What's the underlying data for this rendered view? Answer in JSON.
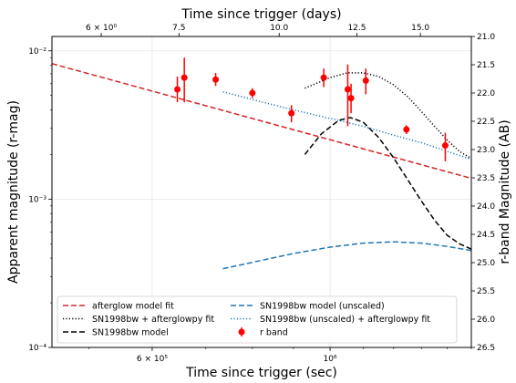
{
  "chart_data": {
    "type": "scatter",
    "xlabel": "Time since trigger (sec)",
    "ylabel": "Apparent magnitude (r-mag)",
    "top_xlabel": "Time since trigger (days)",
    "right_ylabel": "r-band Magnitude (AB)",
    "xscale": "log",
    "yscale": "log",
    "xlim": [
      450000,
      1500000
    ],
    "ylim": [
      0.0001,
      0.0125
    ],
    "grid": true,
    "legend_position": "lower-left",
    "bottom_ticks": [
      {
        "value": 600000,
        "label": "6 × 10⁵"
      },
      {
        "value": 1000000,
        "label": "10⁶"
      }
    ],
    "left_ticks": [
      {
        "value": 0.0001,
        "label": "10⁻⁴"
      },
      {
        "value": 0.001,
        "label": "10⁻³"
      },
      {
        "value": 0.01,
        "label": "10⁻²"
      }
    ],
    "top_ticks": [
      {
        "value": 6.0,
        "label": "6 × 10⁰"
      },
      {
        "value": 7.5,
        "label": "7.5"
      },
      {
        "value": 10.0,
        "label": "10.0"
      },
      {
        "value": 12.5,
        "label": "12.5"
      },
      {
        "value": 15.0,
        "label": "15.0"
      }
    ],
    "right_ticks": [
      "21.0",
      "21.5",
      "22.0",
      "22.5",
      "23.0",
      "23.5",
      "24.0",
      "24.5",
      "25.0",
      "25.5",
      "26.0",
      "26.5"
    ],
    "right_tick_values": [
      21.0,
      21.5,
      22.0,
      22.5,
      23.0,
      23.5,
      24.0,
      24.5,
      25.0,
      25.5,
      26.0,
      26.5
    ],
    "right_ylim": [
      21.0,
      26.5
    ],
    "series": [
      {
        "name": "afterglow model fit",
        "kind": "line",
        "style": "dashed",
        "color": "#d62728",
        "x": [
          450000,
          1500000
        ],
        "y": [
          0.0082,
          0.00138
        ]
      },
      {
        "name": "SN1998bw + afterglowpy fit",
        "kind": "line",
        "style": "dotted",
        "color": "#000000",
        "x": [
          930000,
          1000000,
          1050000,
          1100000,
          1150000,
          1200000,
          1250000,
          1300000,
          1350000,
          1400000,
          1450000,
          1500000
        ],
        "y": [
          0.0056,
          0.0066,
          0.0071,
          0.0071,
          0.0067,
          0.0059,
          0.0049,
          0.0039,
          0.0031,
          0.0025,
          0.0021,
          0.00188
        ]
      },
      {
        "name": "SN1998bw model",
        "kind": "line",
        "style": "dashed",
        "color": "#000000",
        "x": [
          930000,
          975000,
          1025000,
          1060000,
          1100000,
          1150000,
          1200000,
          1250000,
          1300000,
          1350000,
          1400000,
          1450000,
          1500000
        ],
        "y": [
          0.002,
          0.00275,
          0.0034,
          0.00355,
          0.0033,
          0.0026,
          0.0019,
          0.00135,
          0.00097,
          0.00072,
          0.00057,
          0.0005,
          0.00046
        ]
      },
      {
        "name": "SN1998bw model (unscaled)",
        "kind": "line",
        "style": "dashed",
        "color": "#1f77b4",
        "x": [
          735000,
          800000,
          900000,
          1000000,
          1100000,
          1200000,
          1300000,
          1400000,
          1500000
        ],
        "y": [
          0.00034,
          0.000375,
          0.00043,
          0.000475,
          0.000505,
          0.000515,
          0.000505,
          0.00048,
          0.00045
        ]
      },
      {
        "name": "SN1998bw (unscaled) + afterglowpy fit",
        "kind": "line",
        "style": "dotted",
        "color": "#1f77b4",
        "x": [
          735000,
          800000,
          900000,
          1000000,
          1100000,
          1200000,
          1300000,
          1400000,
          1500000
        ],
        "y": [
          0.0053,
          0.0047,
          0.004,
          0.0035,
          0.0031,
          0.0027,
          0.0024,
          0.0021,
          0.00185
        ]
      },
      {
        "name": "r band",
        "kind": "errorbar",
        "color": "#ff0000",
        "x": [
          645000,
          658000,
          720000,
          800000,
          895000,
          982000,
          1052000,
          1062000,
          1108000,
          1245000,
          1392000
        ],
        "y": [
          0.0055,
          0.0066,
          0.0064,
          0.0052,
          0.0038,
          0.0066,
          0.0055,
          0.0048,
          0.0063,
          0.00295,
          0.0023
        ],
        "yerr_low": [
          0.001,
          0.0021,
          0.0006,
          0.0004,
          0.0005,
          0.0009,
          0.0024,
          0.001,
          0.0012,
          0.0002,
          0.0005
        ],
        "yerr_high": [
          0.0012,
          0.0024,
          0.0007,
          0.0004,
          0.0005,
          0.001,
          0.0026,
          0.0012,
          0.0013,
          0.0002,
          0.0005
        ]
      }
    ]
  }
}
